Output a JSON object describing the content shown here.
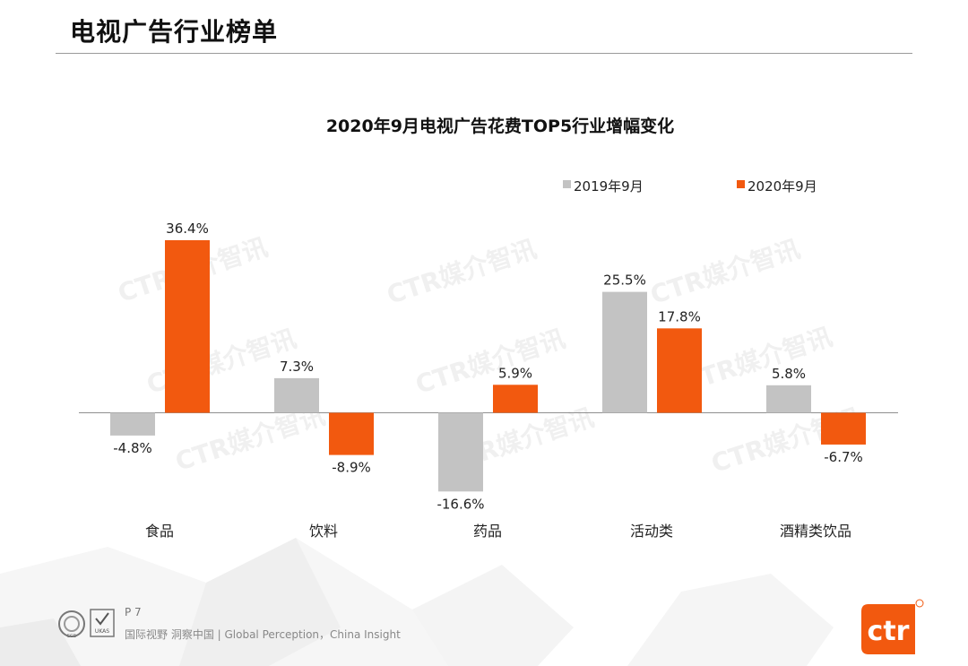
{
  "header": {
    "title": "电视广告行业榜单"
  },
  "chart_data": {
    "type": "bar",
    "title": "2020年9月电视广告花费TOP5行业增幅变化",
    "categories": [
      "食品",
      "饮料",
      "药品",
      "活动类",
      "酒精类饮品"
    ],
    "series": [
      {
        "name": "2019年9月",
        "color": "#c3c3c3",
        "values": [
          -4.8,
          7.3,
          -16.6,
          25.5,
          5.8
        ],
        "labels": [
          "-4.8%",
          "7.3%",
          "-16.6%",
          "25.5%",
          "5.8%"
        ]
      },
      {
        "name": "2020年9月",
        "color": "#f2590f",
        "values": [
          36.4,
          -8.9,
          5.9,
          17.8,
          -6.7
        ],
        "labels": [
          "36.4%",
          "-8.9%",
          "5.9%",
          "17.8%",
          "-6.7%"
        ]
      }
    ],
    "ylim": [
      -18,
      38
    ],
    "unit": "%",
    "legend": "top-right",
    "grid": false
  },
  "watermark": {
    "text": "CTR媒介智讯"
  },
  "footer": {
    "page": "P 7",
    "slogan": "国际视野  洞察中国 |  Global Perception，China Insight"
  },
  "brand": {
    "logo_text": "ctr",
    "cert_labels": [
      "SGS",
      "UKAS"
    ]
  }
}
